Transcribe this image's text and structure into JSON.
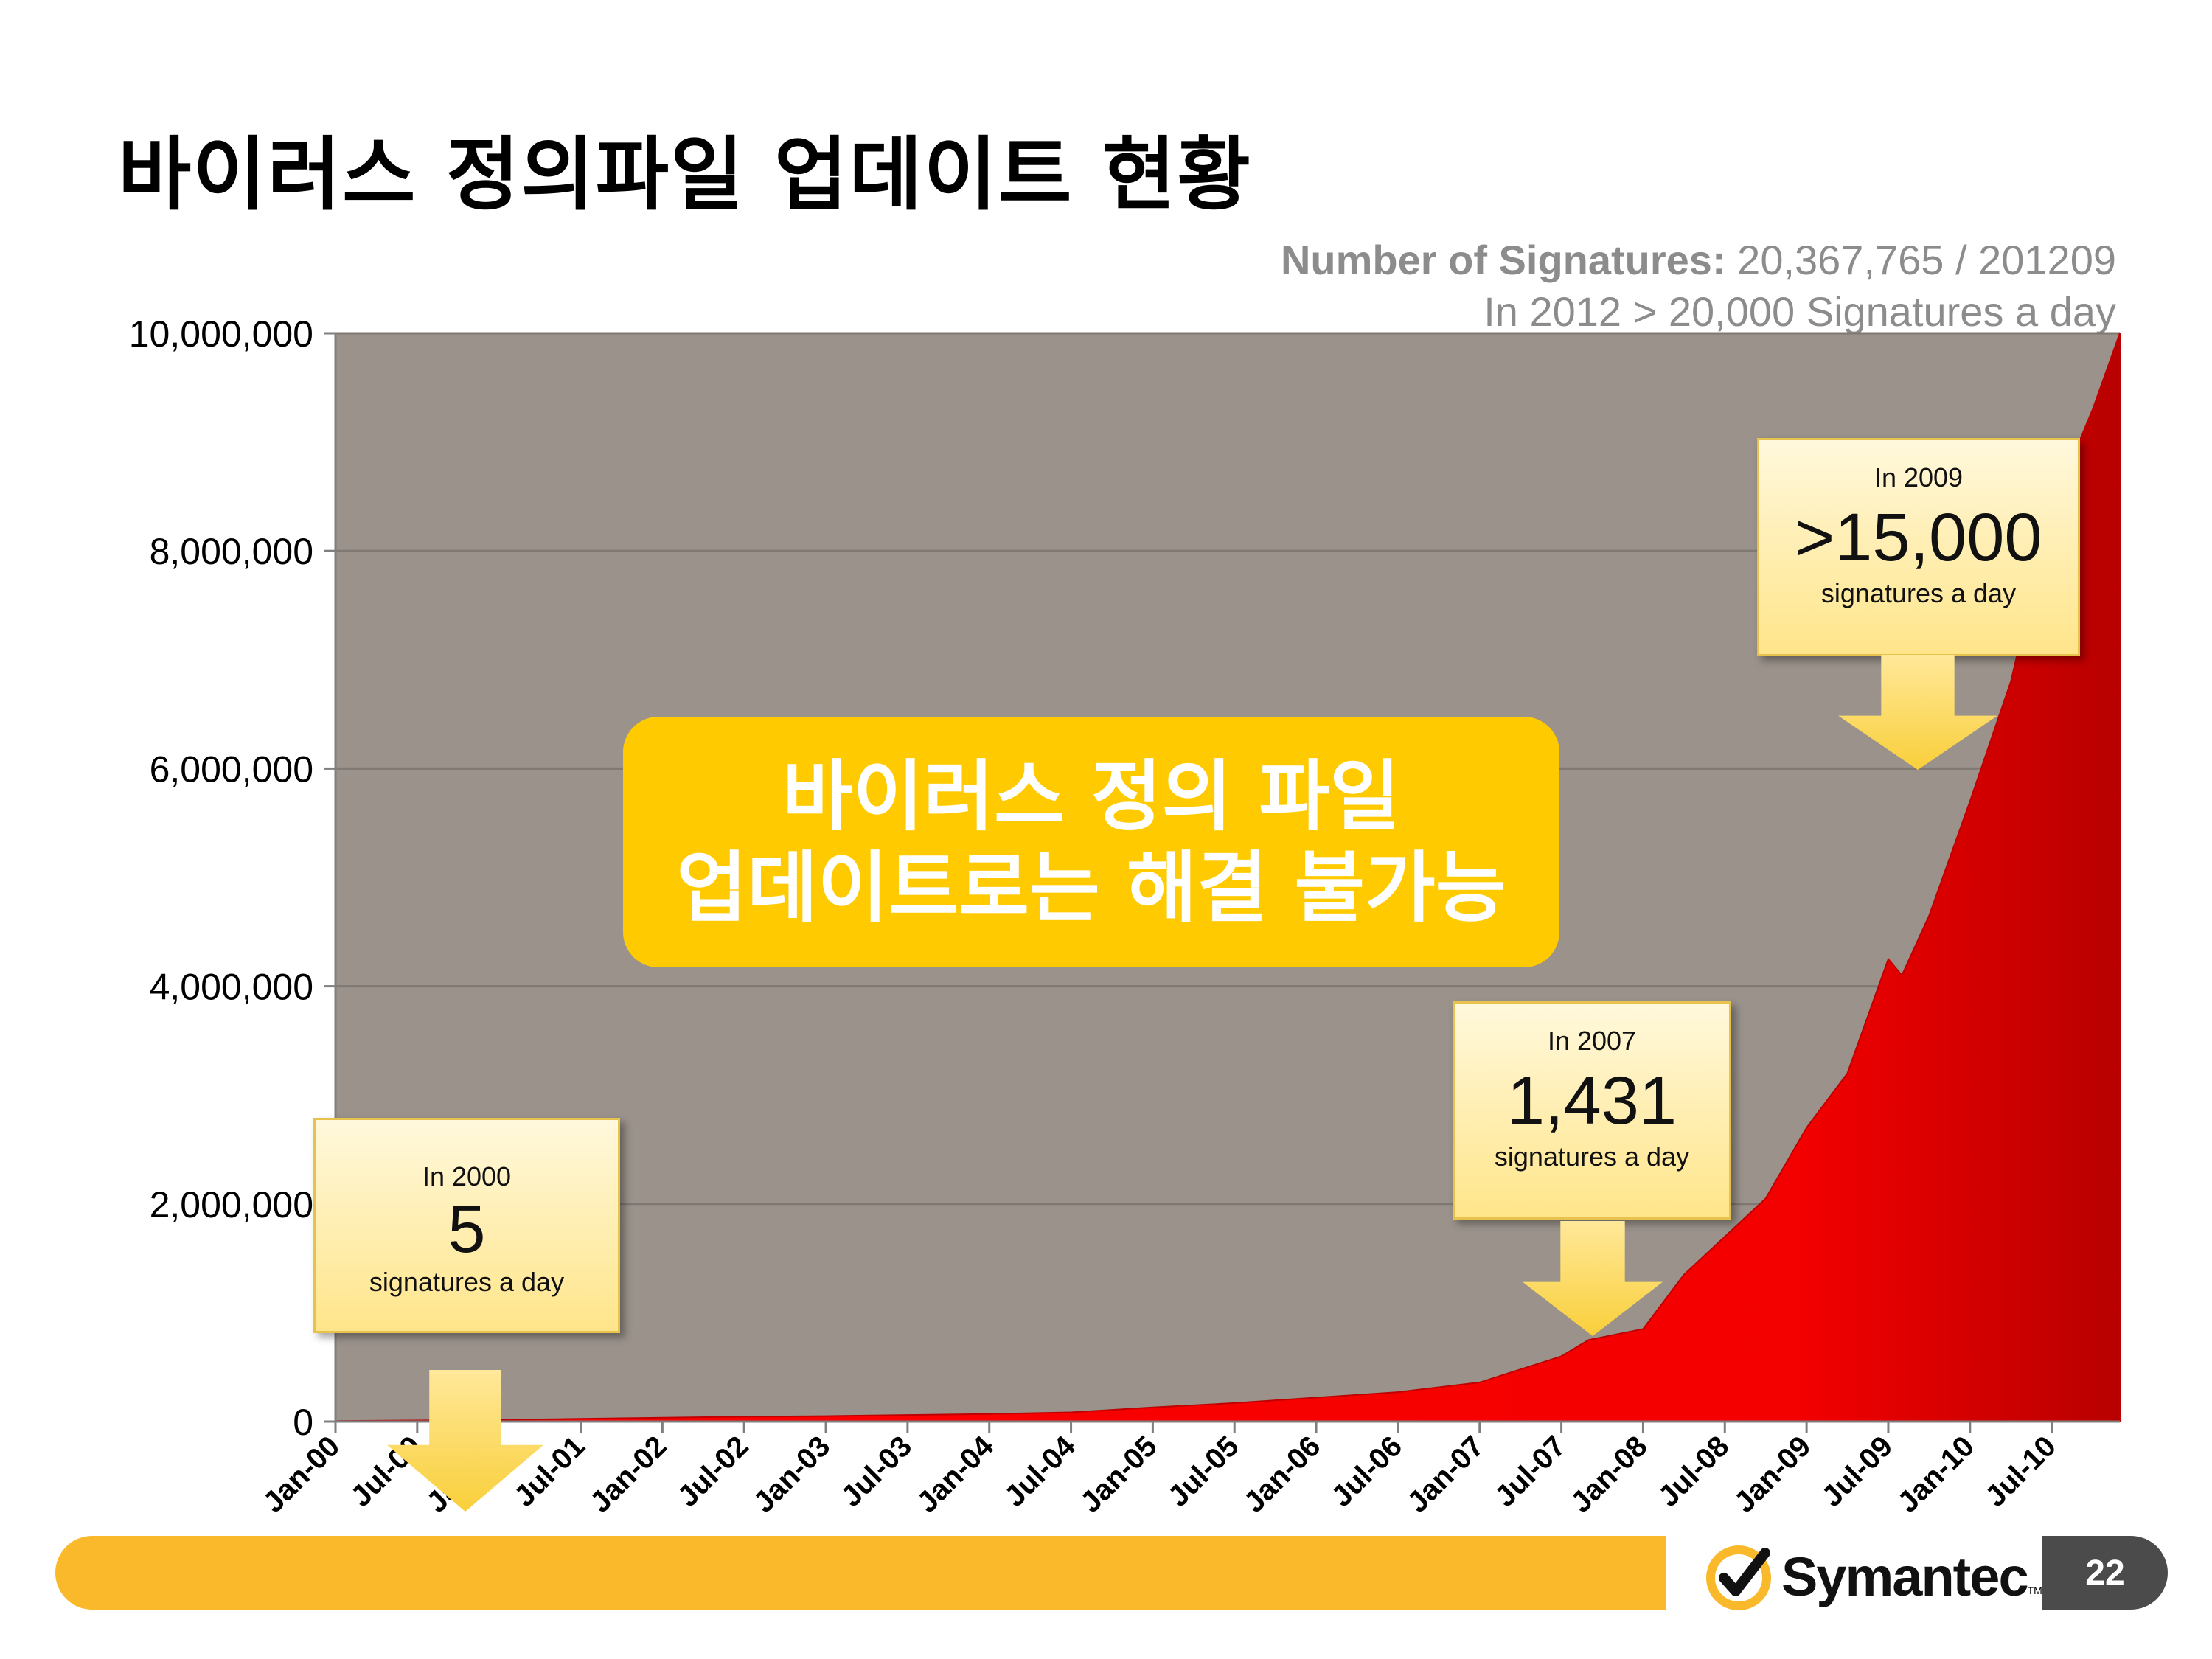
{
  "slide": {
    "title": "바이러스 정의파일 업데이트 현황",
    "signature_note": {
      "bold_label": "Number of Signatures:",
      "count_text": "20,367,765 / 201209",
      "line2": "In 2012 > 20,000 Signatures a day"
    },
    "banner": {
      "line1": "바이러스 정의 파일",
      "line2": "업데이트로는 해결 불가능",
      "color": "#ffca00"
    },
    "callouts": [
      {
        "caption": "In 2000",
        "value": "5",
        "subcaption": "signatures a day"
      },
      {
        "caption": "In 2007",
        "value": "1,431",
        "subcaption": "signatures a day"
      },
      {
        "caption": "In 2009",
        "value": ">15,000",
        "subcaption": "signatures a day"
      }
    ],
    "page_number": "22",
    "logo": {
      "text": "Symantec",
      "tm": "TM",
      "check_icon": "check-circle-icon",
      "accent": "#f9b92a"
    }
  },
  "chart_data": {
    "type": "area",
    "title": "",
    "xlabel": "",
    "ylabel": "",
    "ylim": [
      0,
      10000000
    ],
    "yticks": [
      0,
      2000000,
      4000000,
      6000000,
      8000000,
      10000000
    ],
    "ytick_labels": [
      "0",
      "2,000,000",
      "4,000,000",
      "6,000,000",
      "8,000,000",
      "10,000,000"
    ],
    "xtick_labels": [
      "Jan-00",
      "Jul-00",
      "Jan-01",
      "Jul-01",
      "Jan-02",
      "Jul-02",
      "Jan-03",
      "Jul-03",
      "Jan-04",
      "Jul-04",
      "Jan-05",
      "Jul-05",
      "Jan-06",
      "Jul-06",
      "Jan-07",
      "Jul-07",
      "Jan-08",
      "Jul-08",
      "Jan-09",
      "Jul-09",
      "Jan-10",
      "Jul-10"
    ],
    "grid": true,
    "plot_background": "#9a928b",
    "fill_color": "#ff0000",
    "series": [
      {
        "x": [
          "Jan-00",
          "Jul-00",
          "Jan-01",
          "Jul-01",
          "Jan-02",
          "Jul-02",
          "Jan-03",
          "Jul-03",
          "Jan-04",
          "Jul-04",
          "Jan-05",
          "Jul-05",
          "Jan-06",
          "Jul-06",
          "Jan-07",
          "Jul-07",
          "Sep-07",
          "Jan-08",
          "Apr-08",
          "Jul-08",
          "Oct-08",
          "Jan-09",
          "Apr-09",
          "Jul-09",
          "Aug-09",
          "Oct-09",
          "Jan-10",
          "Apr-10",
          "Jul-10",
          "Oct-10",
          "Dec-10"
        ],
        "values": [
          5000,
          10000,
          15000,
          25000,
          35000,
          45000,
          50000,
          60000,
          70000,
          85000,
          130000,
          170000,
          220000,
          270000,
          360000,
          600000,
          750000,
          850000,
          1350000,
          1700000,
          2050000,
          2700000,
          3200000,
          4250000,
          4100000,
          4650000,
          5700000,
          6800000,
          8400000,
          9300000,
          10000000
        ]
      }
    ]
  }
}
